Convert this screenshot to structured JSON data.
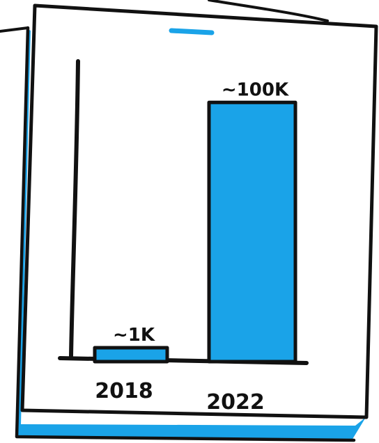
{
  "colors": {
    "accent": "#1aa3e8",
    "ink": "#111111",
    "paper": "#ffffff"
  },
  "icons": {
    "top-mark": "short-blue-dash"
  },
  "chart_data": {
    "type": "bar",
    "categories": [
      "2018",
      "2022"
    ],
    "values": [
      1000,
      100000
    ],
    "data_labels": [
      "~1K",
      "~100K"
    ],
    "ylim": [
      0,
      110000
    ],
    "grid": false,
    "legend": "none",
    "title": "",
    "xlabel": "",
    "ylabel": ""
  }
}
